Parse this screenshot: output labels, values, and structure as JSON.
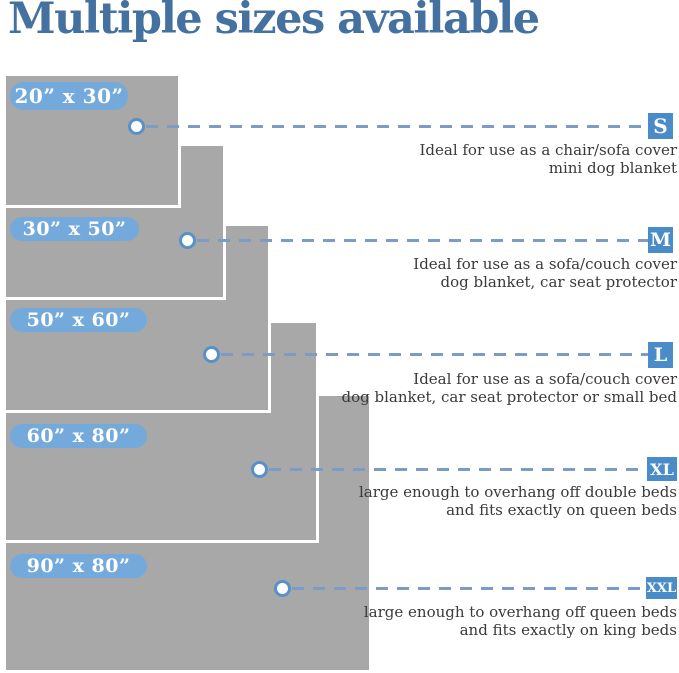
{
  "title": "Multiple sizes available",
  "colors": {
    "title_blue": "#44719f",
    "rect_gray": "#a8a8a8",
    "dim_badge_blue": "#74aadb",
    "letter_badge_blue": "#4a8cc8",
    "dash_blue": "#7b9cc4",
    "dot_ring_blue": "#5890c9",
    "description_text": "#3a3a3a"
  },
  "sizes": [
    {
      "dimensions": "20” x 30”",
      "letter": "S",
      "description_line1": "Ideal for use as a chair/sofa cover",
      "description_line2": "mini dog blanket"
    },
    {
      "dimensions": "30” x 50”",
      "letter": "M",
      "description_line1": "Ideal for use as a sofa/couch cover",
      "description_line2": "dog blanket, car seat protector"
    },
    {
      "dimensions": "50” x 60”",
      "letter": "L",
      "description_line1": "Ideal for use as a sofa/couch cover",
      "description_line2": "dog blanket, car seat protector or small bed"
    },
    {
      "dimensions": "60” x 80”",
      "letter": "XL",
      "description_line1": "large enough to overhang off double beds",
      "description_line2": "and fits exactly on queen beds"
    },
    {
      "dimensions": "90” x 80”",
      "letter": "XXL",
      "description_line1": "large enough to overhang off queen beds",
      "description_line2": "and fits exactly on king beds"
    }
  ]
}
